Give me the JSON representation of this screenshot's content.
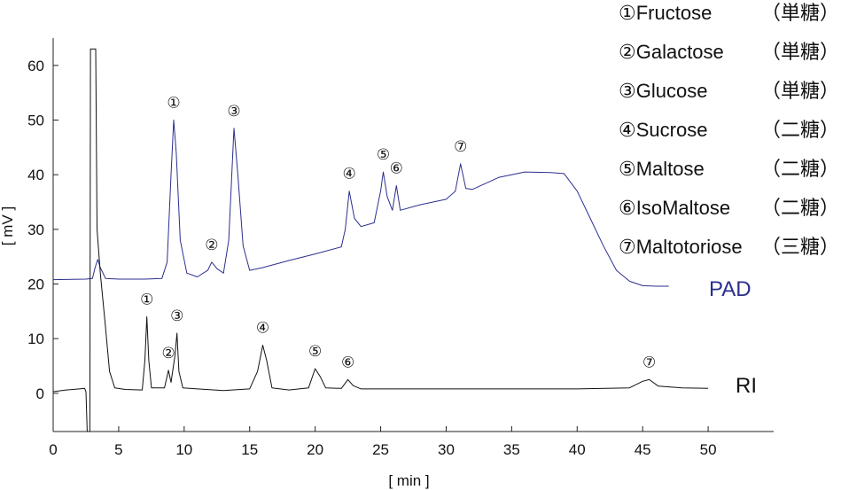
{
  "chart_data": {
    "type": "line",
    "title": "",
    "xlabel": "[ min ]",
    "ylabel": "[ mV ]",
    "xlim": [
      0,
      55
    ],
    "ylim": [
      -7,
      65
    ],
    "x_ticks": [
      0,
      5,
      10,
      15,
      20,
      25,
      30,
      35,
      40,
      45,
      50
    ],
    "y_ticks": [
      0,
      10,
      20,
      30,
      40,
      50,
      60
    ],
    "series": [
      {
        "name": "PAD",
        "color": "#2b2f8f",
        "points": [
          [
            0,
            20.8
          ],
          [
            2.5,
            20.9
          ],
          [
            3.0,
            21.0
          ],
          [
            3.2,
            23.0
          ],
          [
            3.4,
            24.5
          ],
          [
            3.6,
            23.0
          ],
          [
            4.0,
            21.0
          ],
          [
            5,
            20.9
          ],
          [
            7,
            20.9
          ],
          [
            8.3,
            21.0
          ],
          [
            8.7,
            24.0
          ],
          [
            9.0,
            40.0
          ],
          [
            9.2,
            50.0
          ],
          [
            9.4,
            44.0
          ],
          [
            9.7,
            28.0
          ],
          [
            10.2,
            22.0
          ],
          [
            11,
            21.3
          ],
          [
            11.8,
            22.5
          ],
          [
            12.1,
            24.0
          ],
          [
            12.5,
            22.8
          ],
          [
            13.0,
            22.0
          ],
          [
            13.4,
            28.0
          ],
          [
            13.8,
            48.5
          ],
          [
            14.1,
            40.0
          ],
          [
            14.5,
            27.0
          ],
          [
            15.0,
            22.5
          ],
          [
            16,
            23.0
          ],
          [
            18,
            24.3
          ],
          [
            20,
            25.5
          ],
          [
            22,
            26.8
          ],
          [
            22.3,
            30.0
          ],
          [
            22.6,
            37.0
          ],
          [
            23.0,
            32.0
          ],
          [
            23.5,
            30.5
          ],
          [
            24.5,
            31.2
          ],
          [
            25.0,
            37.0
          ],
          [
            25.2,
            40.5
          ],
          [
            25.5,
            36.0
          ],
          [
            25.9,
            33.5
          ],
          [
            26.2,
            38.0
          ],
          [
            26.5,
            33.5
          ],
          [
            28,
            34.5
          ],
          [
            30,
            35.5
          ],
          [
            30.7,
            37.0
          ],
          [
            31.1,
            42.0
          ],
          [
            31.5,
            37.5
          ],
          [
            32,
            37.3
          ],
          [
            34,
            39.5
          ],
          [
            36,
            40.5
          ],
          [
            38,
            40.4
          ],
          [
            39,
            40.2
          ],
          [
            40,
            37.0
          ],
          [
            41,
            32.0
          ],
          [
            42,
            27.0
          ],
          [
            43,
            22.5
          ],
          [
            44,
            20.5
          ],
          [
            45,
            19.7
          ],
          [
            46,
            19.6
          ],
          [
            47,
            19.6
          ]
        ]
      },
      {
        "name": "RI",
        "color": "#111111",
        "points": [
          [
            0,
            0.3
          ],
          [
            1,
            0.6
          ],
          [
            2,
            0.8
          ],
          [
            2.4,
            0.9
          ],
          [
            2.5,
            0.3
          ],
          [
            2.6,
            -7
          ],
          [
            2.8,
            -7
          ],
          [
            2.85,
            63.0
          ],
          [
            3.25,
            63.0
          ],
          [
            3.35,
            30.0
          ],
          [
            3.6,
            22.0
          ],
          [
            4,
            12.0
          ],
          [
            4.3,
            4.0
          ],
          [
            4.7,
            1.0
          ],
          [
            5.5,
            0.7
          ],
          [
            6.8,
            0.6
          ],
          [
            7.0,
            6.0
          ],
          [
            7.15,
            14.0
          ],
          [
            7.3,
            6.0
          ],
          [
            7.5,
            1.0
          ],
          [
            8.5,
            1.0
          ],
          [
            8.8,
            4.2
          ],
          [
            9.0,
            2.0
          ],
          [
            9.3,
            7.0
          ],
          [
            9.45,
            11.0
          ],
          [
            9.6,
            4.0
          ],
          [
            9.9,
            1.0
          ],
          [
            11,
            0.8
          ],
          [
            13,
            0.5
          ],
          [
            15,
            0.8
          ],
          [
            15.6,
            4.0
          ],
          [
            16.0,
            8.8
          ],
          [
            16.3,
            6.0
          ],
          [
            16.7,
            1.0
          ],
          [
            18,
            0.6
          ],
          [
            19.5,
            1.0
          ],
          [
            20.0,
            4.5
          ],
          [
            20.4,
            3.0
          ],
          [
            20.8,
            1.0
          ],
          [
            22,
            0.9
          ],
          [
            22.5,
            2.5
          ],
          [
            22.9,
            1.4
          ],
          [
            23.5,
            0.8
          ],
          [
            30,
            0.8
          ],
          [
            40,
            0.8
          ],
          [
            44,
            1.0
          ],
          [
            45.0,
            2.2
          ],
          [
            45.5,
            2.5
          ],
          [
            46.2,
            1.3
          ],
          [
            48,
            1.0
          ],
          [
            50,
            0.9
          ]
        ]
      }
    ],
    "series_labels": [
      "PAD",
      "RI"
    ],
    "peaks": {
      "PAD": [
        {
          "label": "①",
          "x": 9.2,
          "y": 50.0
        },
        {
          "label": "②",
          "x": 12.1,
          "y": 24.0
        },
        {
          "label": "③",
          "x": 13.8,
          "y": 48.5
        },
        {
          "label": "④",
          "x": 22.6,
          "y": 37.0
        },
        {
          "label": "⑤",
          "x": 25.2,
          "y": 40.5
        },
        {
          "label": "⑥",
          "x": 26.2,
          "y": 38.0
        },
        {
          "label": "⑦",
          "x": 31.1,
          "y": 42.0
        }
      ],
      "RI": [
        {
          "label": "①",
          "x": 7.15,
          "y": 14.0
        },
        {
          "label": "②",
          "x": 8.8,
          "y": 4.2
        },
        {
          "label": "③",
          "x": 9.45,
          "y": 11.0
        },
        {
          "label": "④",
          "x": 16.0,
          "y": 8.8
        },
        {
          "label": "⑤",
          "x": 20.0,
          "y": 4.5
        },
        {
          "label": "⑥",
          "x": 22.5,
          "y": 2.5
        },
        {
          "label": "⑦",
          "x": 45.5,
          "y": 2.5
        }
      ]
    },
    "legend_placement": "top-right",
    "legend": [
      {
        "mark": "①",
        "name": "Fructose",
        "kind": "（単糖）"
      },
      {
        "mark": "②",
        "name": "Galactose",
        "kind": "（単糖）"
      },
      {
        "mark": "③",
        "name": "Glucose",
        "kind": "（単糖）"
      },
      {
        "mark": "④",
        "name": "Sucrose",
        "kind": "（二糖）"
      },
      {
        "mark": "⑤",
        "name": "Maltose",
        "kind": "（二糖）"
      },
      {
        "mark": "⑥",
        "name": "IsoMaltose",
        "kind": "（二糖）"
      },
      {
        "mark": "⑦",
        "name": "Maltotoriose",
        "kind": "（三糖）"
      }
    ],
    "grid": false
  }
}
